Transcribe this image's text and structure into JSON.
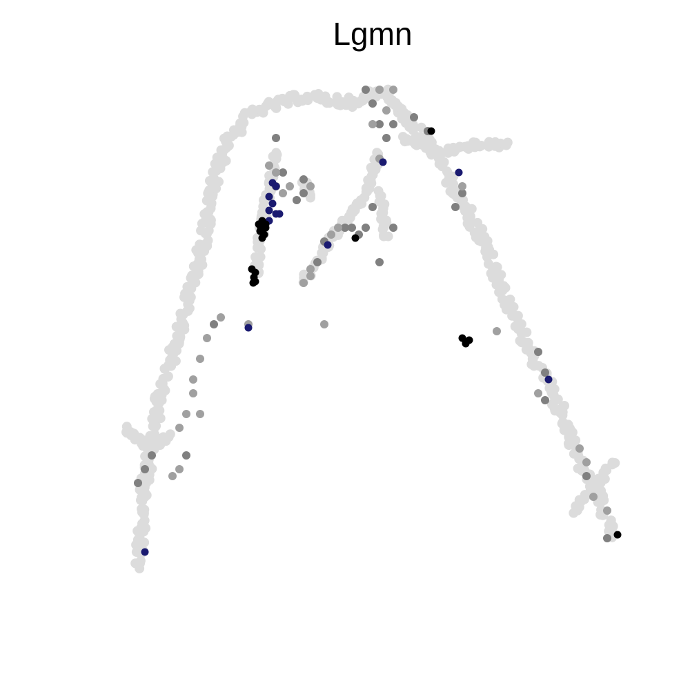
{
  "chart_data": {
    "type": "scatter",
    "title": "Lgmn",
    "xlabel": "",
    "ylabel": "",
    "axes_visible": false,
    "grid": false,
    "legend": "none",
    "xlim": [
      0,
      100
    ],
    "ylim": [
      0,
      100
    ],
    "colors": {
      "background_cells": "#dcdcdc",
      "low_expression": "#a0a0a0",
      "mid_expression": "#808080",
      "high_expression": "#1a1a70",
      "top_expression": "#000000"
    },
    "trajectory": {
      "main_arc": [
        [
          20,
          82
        ],
        [
          21,
          70
        ],
        [
          23,
          58
        ],
        [
          26,
          48
        ],
        [
          29,
          37
        ],
        [
          31,
          27
        ],
        [
          33,
          20
        ],
        [
          37,
          16
        ],
        [
          44,
          14
        ],
        [
          52,
          15
        ],
        [
          55,
          13
        ],
        [
          58,
          16
        ],
        [
          62,
          21
        ],
        [
          65,
          26
        ],
        [
          68,
          31
        ],
        [
          71,
          37
        ],
        [
          73,
          43
        ],
        [
          76,
          49
        ],
        [
          79,
          55
        ],
        [
          82,
          61
        ],
        [
          84,
          67
        ],
        [
          87,
          72
        ],
        [
          89,
          78
        ]
      ],
      "right_spur": [
        [
          58,
          20
        ],
        [
          64,
          22
        ],
        [
          69,
          21
        ],
        [
          74,
          21
        ]
      ],
      "inner_branch_a": [
        [
          40,
          22
        ],
        [
          39,
          27
        ],
        [
          38,
          33
        ],
        [
          37,
          40
        ]
      ],
      "inner_branch_b": [
        [
          44,
          26
        ],
        [
          45,
          29
        ]
      ],
      "inner_branch_c": [
        [
          55,
          22
        ],
        [
          53,
          28
        ],
        [
          50,
          32
        ],
        [
          47,
          36
        ],
        [
          44,
          41
        ]
      ],
      "inner_branch_d": [
        [
          55,
          28
        ],
        [
          56,
          35
        ]
      ],
      "left_bulge": [
        [
          18,
          62
        ],
        [
          22,
          65
        ],
        [
          25,
          63
        ]
      ],
      "right_tail": [
        [
          83,
          74
        ],
        [
          89,
          67
        ]
      ]
    },
    "grey_points": [
      [
        53,
        13
      ],
      [
        55,
        13
      ],
      [
        57,
        13
      ],
      [
        54,
        15
      ],
      [
        56,
        16
      ],
      [
        55,
        18
      ],
      [
        57,
        18
      ],
      [
        54,
        18
      ],
      [
        60,
        17
      ],
      [
        62,
        19
      ],
      [
        56,
        20
      ],
      [
        55,
        23
      ],
      [
        40,
        20
      ],
      [
        41,
        25
      ],
      [
        40,
        27
      ],
      [
        41,
        28
      ],
      [
        42,
        27
      ],
      [
        44,
        26
      ],
      [
        44,
        28
      ],
      [
        43,
        29
      ],
      [
        45,
        27
      ],
      [
        39,
        24
      ],
      [
        40,
        25
      ],
      [
        54,
        30
      ],
      [
        53,
        33
      ],
      [
        52,
        34
      ],
      [
        50,
        33
      ],
      [
        48,
        34
      ],
      [
        47,
        35
      ],
      [
        49,
        33
      ],
      [
        51,
        33
      ],
      [
        57,
        33
      ],
      [
        55,
        38
      ],
      [
        46,
        38
      ],
      [
        45,
        39
      ],
      [
        44,
        41
      ],
      [
        45,
        40
      ],
      [
        32,
        46
      ],
      [
        31,
        47
      ],
      [
        30,
        49
      ],
      [
        29,
        52
      ],
      [
        28,
        55
      ],
      [
        28,
        57
      ],
      [
        27,
        60
      ],
      [
        26,
        62
      ],
      [
        27,
        66
      ],
      [
        26,
        68
      ],
      [
        25,
        69
      ],
      [
        29,
        60
      ],
      [
        22,
        66
      ],
      [
        21,
        68
      ],
      [
        20,
        70
      ],
      [
        67,
        28
      ],
      [
        66,
        30
      ],
      [
        67,
        27
      ],
      [
        72,
        48
      ],
      [
        78,
        51
      ],
      [
        79,
        54
      ],
      [
        78,
        57
      ],
      [
        79,
        58
      ],
      [
        84,
        65
      ],
      [
        85,
        67
      ],
      [
        85,
        69
      ],
      [
        86,
        72
      ],
      [
        88,
        74
      ],
      [
        88,
        78
      ],
      [
        47,
        47
      ],
      [
        36,
        47
      ]
    ],
    "navy_points": [
      [
        39.5,
        26.5
      ],
      [
        40,
        27
      ],
      [
        39,
        28.5
      ],
      [
        39.5,
        29.5
      ],
      [
        39,
        30.5
      ],
      [
        40,
        31
      ],
      [
        40.5,
        31
      ],
      [
        39,
        32
      ],
      [
        55.5,
        23.5
      ],
      [
        66.5,
        25
      ],
      [
        47.5,
        35.5
      ],
      [
        36,
        47.5
      ],
      [
        79.5,
        55
      ],
      [
        21,
        80
      ]
    ],
    "black_points": [
      [
        37.5,
        32.5
      ],
      [
        38,
        32
      ],
      [
        38.5,
        33
      ],
      [
        37.7,
        33.5
      ],
      [
        38.3,
        34
      ],
      [
        38,
        34.5
      ],
      [
        38.5,
        32.5
      ],
      [
        37.8,
        33
      ],
      [
        36.5,
        39
      ],
      [
        37,
        39.5
      ],
      [
        36.8,
        40.2
      ],
      [
        37,
        40.8
      ],
      [
        36.7,
        41
      ],
      [
        62.5,
        19
      ],
      [
        51.5,
        34.5
      ],
      [
        67,
        49
      ],
      [
        67.5,
        49.5
      ],
      [
        68,
        49.3
      ],
      [
        67.5,
        49.8
      ],
      [
        89.5,
        77.5
      ]
    ]
  }
}
